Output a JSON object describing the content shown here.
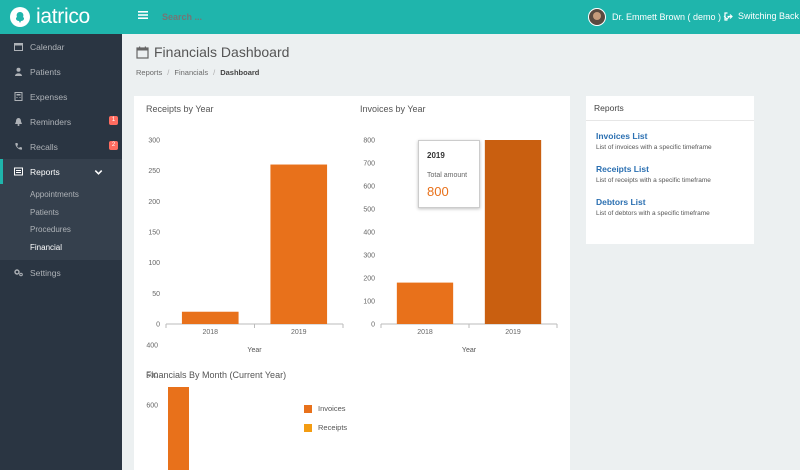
{
  "brand": {
    "name": "iatrico"
  },
  "header": {
    "search_placeholder": "Search ...",
    "user_name": "Dr. Emmett Brown ( demo )",
    "switch_label": "Switching Back"
  },
  "sidebar": {
    "items": [
      {
        "label": "Calendar",
        "icon": "calendar-icon"
      },
      {
        "label": "Patients",
        "icon": "user-icon"
      },
      {
        "label": "Expenses",
        "icon": "calculator-icon"
      },
      {
        "label": "Reminders",
        "icon": "bell-icon",
        "badge": "1"
      },
      {
        "label": "Recalls",
        "icon": "phone-icon",
        "badge": "2"
      },
      {
        "label": "Reports",
        "icon": "reports-icon"
      }
    ],
    "sub_items": [
      "Appointments",
      "Patients",
      "Procedures",
      "Financial"
    ],
    "settings_label": "Settings"
  },
  "page": {
    "title": "Financials Dashboard",
    "breadcrumb": [
      "Reports",
      "Financials",
      "Dashboard"
    ]
  },
  "reports_panel": {
    "title": "Reports",
    "links": [
      {
        "label": "Invoices List",
        "desc": "List of invoices with a specific timeframe"
      },
      {
        "label": "Receipts List",
        "desc": "List of receipts with a specific timeframe"
      },
      {
        "label": "Debtors List",
        "desc": "List of debtors with a specific timeframe"
      }
    ]
  },
  "tooltip": {
    "title": "2019",
    "label": "Total amount",
    "value": "800"
  },
  "colors": {
    "accent": "#1fb5ac",
    "sidebar": "#2a3542",
    "bar": "#e8711b",
    "bar_hover": "#c95f10",
    "receipts": "#f39c12"
  },
  "chart_data": [
    {
      "type": "bar",
      "title": "Receipts by Year",
      "categories": [
        "2018",
        "2019"
      ],
      "values": [
        20,
        260
      ],
      "xlabel": "Year",
      "ylabel": "",
      "ylim": [
        0,
        300
      ],
      "yticks": [
        0,
        50,
        100,
        150,
        200,
        250,
        300
      ]
    },
    {
      "type": "bar",
      "title": "Invoices by Year",
      "categories": [
        "2018",
        "2019"
      ],
      "values": [
        180,
        800
      ],
      "xlabel": "Year",
      "ylabel": "",
      "ylim": [
        0,
        800
      ],
      "yticks": [
        0,
        100,
        200,
        300,
        400,
        500,
        600,
        700,
        800
      ]
    },
    {
      "type": "bar",
      "title": "Financials By Month (Current Year)",
      "series": [
        {
          "name": "Invoices",
          "values": [
            540
          ]
        },
        {
          "name": "Receipts",
          "values": []
        }
      ],
      "yticks_visible": [
        400,
        500,
        600
      ],
      "legend": "right"
    }
  ]
}
